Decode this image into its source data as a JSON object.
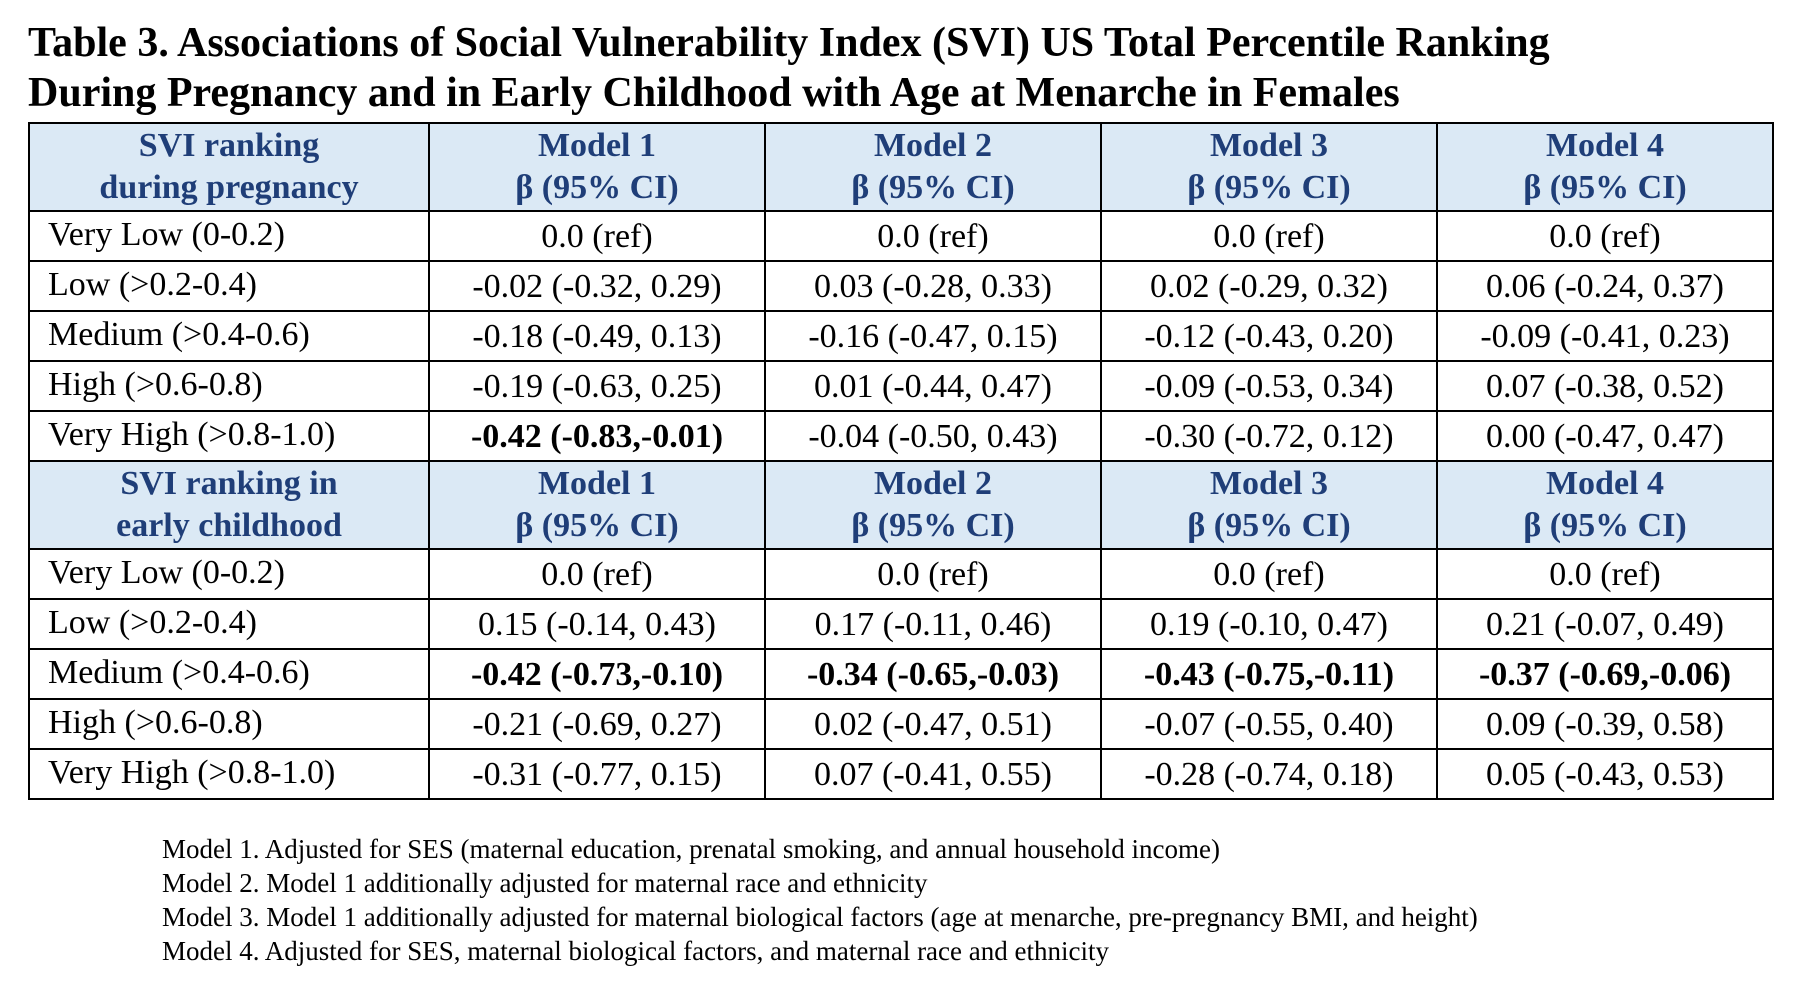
{
  "title": {
    "line1": "Table 3. Associations of Social Vulnerability Index (SVI) US Total Percentile Ranking",
    "line2": "During Pregnancy and in Early Childhood with Age at Menarche in Females"
  },
  "colors": {
    "header_bg": "#dbe9f5",
    "header_text": "#1f3e78",
    "border": "#000000"
  },
  "sections": [
    {
      "header": {
        "label_line1": "SVI ranking",
        "label_line2": "during pregnancy",
        "models": [
          {
            "name": "Model 1",
            "stat": "β (95% CI)"
          },
          {
            "name": "Model 2",
            "stat": "β (95% CI)"
          },
          {
            "name": "Model 3",
            "stat": "β (95% CI)"
          },
          {
            "name": "Model 4",
            "stat": "β (95% CI)"
          }
        ]
      },
      "rows": [
        {
          "label": "Very Low (0-0.2)",
          "values": [
            "0.0 (ref)",
            "0.0 (ref)",
            "0.0 (ref)",
            "0.0 (ref)"
          ],
          "bold": [
            false,
            false,
            false,
            false
          ]
        },
        {
          "label": "Low (>0.2-0.4)",
          "values": [
            "-0.02 (-0.32, 0.29)",
            "0.03 (-0.28, 0.33)",
            "0.02 (-0.29, 0.32)",
            "0.06 (-0.24, 0.37)"
          ],
          "bold": [
            false,
            false,
            false,
            false
          ]
        },
        {
          "label": "Medium (>0.4-0.6)",
          "values": [
            "-0.18 (-0.49, 0.13)",
            "-0.16 (-0.47, 0.15)",
            "-0.12 (-0.43, 0.20)",
            "-0.09 (-0.41, 0.23)"
          ],
          "bold": [
            false,
            false,
            false,
            false
          ]
        },
        {
          "label": "High (>0.6-0.8)",
          "values": [
            "-0.19 (-0.63, 0.25)",
            "0.01 (-0.44, 0.47)",
            "-0.09 (-0.53, 0.34)",
            "0.07 (-0.38, 0.52)"
          ],
          "bold": [
            false,
            false,
            false,
            false
          ]
        },
        {
          "label": "Very High (>0.8-1.0)",
          "values": [
            "-0.42 (-0.83,-0.01)",
            "-0.04 (-0.50, 0.43)",
            "-0.30 (-0.72, 0.12)",
            "0.00 (-0.47, 0.47)"
          ],
          "bold": [
            true,
            false,
            false,
            false
          ]
        }
      ]
    },
    {
      "header": {
        "label_line1": "SVI ranking in",
        "label_line2": "early childhood",
        "models": [
          {
            "name": "Model 1",
            "stat": "β (95% CI)"
          },
          {
            "name": "Model 2",
            "stat": "β (95% CI)"
          },
          {
            "name": "Model 3",
            "stat": "β (95% CI)"
          },
          {
            "name": "Model 4",
            "stat": "β (95% CI)"
          }
        ]
      },
      "rows": [
        {
          "label": "Very Low (0-0.2)",
          "values": [
            "0.0 (ref)",
            "0.0 (ref)",
            "0.0 (ref)",
            "0.0 (ref)"
          ],
          "bold": [
            false,
            false,
            false,
            false
          ]
        },
        {
          "label": "Low (>0.2-0.4)",
          "values": [
            "0.15 (-0.14, 0.43)",
            "0.17 (-0.11, 0.46)",
            "0.19 (-0.10, 0.47)",
            "0.21 (-0.07, 0.49)"
          ],
          "bold": [
            false,
            false,
            false,
            false
          ]
        },
        {
          "label": "Medium (>0.4-0.6)",
          "values": [
            "-0.42 (-0.73,-0.10)",
            "-0.34 (-0.65,-0.03)",
            "-0.43 (-0.75,-0.11)",
            "-0.37 (-0.69,-0.06)"
          ],
          "bold": [
            true,
            true,
            true,
            true
          ]
        },
        {
          "label": "High (>0.6-0.8)",
          "values": [
            "-0.21 (-0.69, 0.27)",
            "0.02 (-0.47, 0.51)",
            "-0.07 (-0.55, 0.40)",
            "0.09 (-0.39, 0.58)"
          ],
          "bold": [
            false,
            false,
            false,
            false
          ]
        },
        {
          "label": "Very High (>0.8-1.0)",
          "values": [
            "-0.31 (-0.77, 0.15)",
            "0.07 (-0.41, 0.55)",
            "-0.28 (-0.74, 0.18)",
            "0.05 (-0.43, 0.53)"
          ],
          "bold": [
            false,
            false,
            false,
            false
          ]
        }
      ]
    }
  ],
  "notes": [
    "Model 1. Adjusted for SES (maternal education, prenatal smoking, and annual household income)",
    "Model 2. Model 1 additionally adjusted for maternal race and ethnicity",
    "Model 3. Model 1 additionally adjusted for maternal biological factors (age at menarche, pre-pregnancy BMI, and height)",
    "Model 4. Adjusted for SES, maternal biological factors, and maternal race and ethnicity"
  ]
}
